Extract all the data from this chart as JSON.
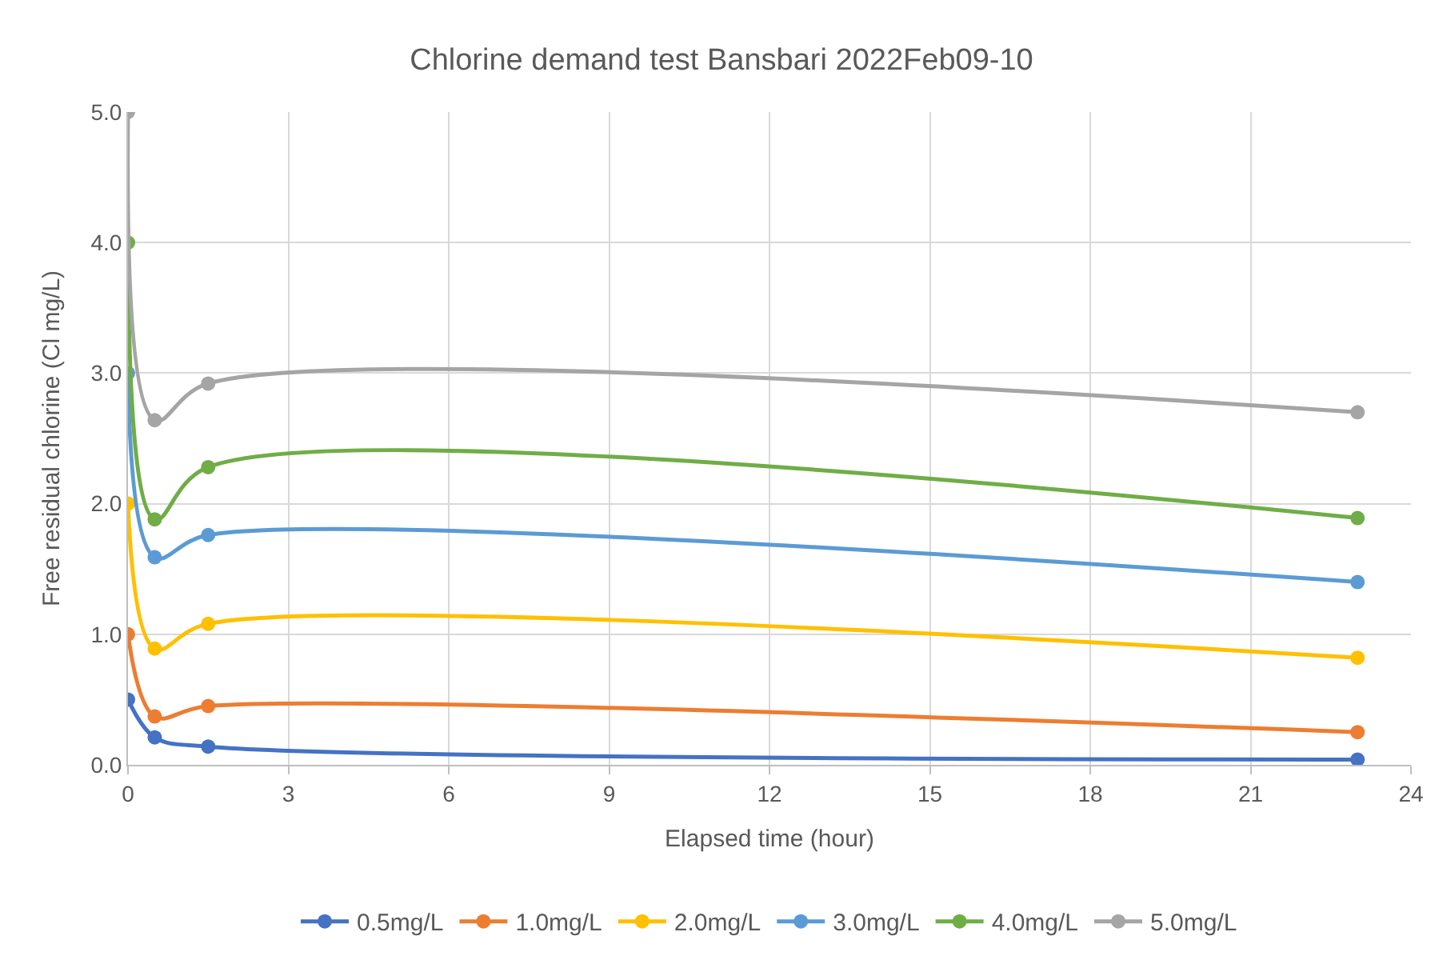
{
  "chart_data": {
    "type": "line",
    "title": "Chlorine demand test Bansbari 2022Feb09-10",
    "xlabel": "Elapsed time (hour)",
    "ylabel": "Free residual chlorine (Cl mg/L)",
    "x": [
      0,
      0.5,
      1.5,
      23
    ],
    "series": [
      {
        "name": "0.5mg/L",
        "color": "#4472c4",
        "values": [
          0.5,
          0.21,
          0.14,
          0.04
        ]
      },
      {
        "name": "1.0mg/L",
        "color": "#ed7d31",
        "values": [
          1.0,
          0.37,
          0.45,
          0.25
        ]
      },
      {
        "name": "2.0mg/L",
        "color": "#ffc000",
        "values": [
          2.0,
          0.89,
          1.08,
          0.82
        ]
      },
      {
        "name": "3.0mg/L",
        "color": "#5b9bd5",
        "values": [
          3.0,
          1.59,
          1.76,
          1.4
        ]
      },
      {
        "name": "4.0mg/L",
        "color": "#70ad47",
        "values": [
          4.0,
          1.88,
          2.28,
          1.89
        ]
      },
      {
        "name": "5.0mg/L",
        "color": "#a5a5a5",
        "values": [
          5.0,
          2.64,
          2.92,
          2.7
        ]
      }
    ],
    "xlim": [
      0,
      24
    ],
    "xticks": [
      0,
      3,
      6,
      9,
      12,
      15,
      18,
      21,
      24
    ],
    "ylim": [
      0,
      5
    ],
    "yticks": [
      {
        "value": 0,
        "label": "0.0"
      },
      {
        "value": 1,
        "label": "1.0"
      },
      {
        "value": 2,
        "label": "2.0"
      },
      {
        "value": 3,
        "label": "3.0"
      },
      {
        "value": 4,
        "label": "4.0"
      },
      {
        "value": 5,
        "label": "5.0"
      }
    ],
    "grid": true,
    "legend": "bottom",
    "marker": "circle",
    "line_style": "solid"
  }
}
